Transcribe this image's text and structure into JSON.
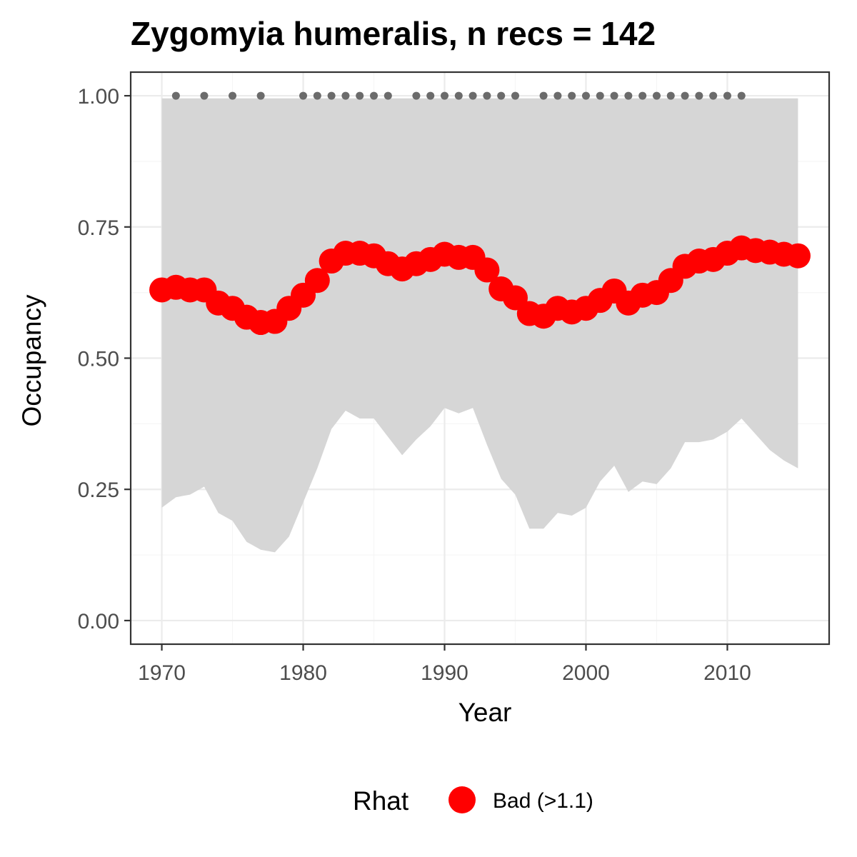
{
  "chart_data": {
    "type": "line",
    "title": "Zygomyia humeralis, n recs = 142",
    "xlabel": "Year",
    "ylabel": "Occupancy",
    "xlim": [
      1967.8,
      2017.2
    ],
    "ylim": [
      -0.045,
      1.045
    ],
    "x_ticks": [
      1970,
      1980,
      1990,
      2000,
      2010
    ],
    "x_tick_labels": [
      "1970",
      "1980",
      "1990",
      "2000",
      "2010"
    ],
    "y_ticks": [
      0,
      0.25,
      0.5,
      0.75,
      1.0
    ],
    "y_tick_labels": [
      "0.00",
      "0.25",
      "0.50",
      "0.75",
      "1.00"
    ],
    "grid": true,
    "colors": {
      "mean": "#ff0000",
      "ribbon": "#d6d6d6",
      "records": "#6b6b6b",
      "grid_major": "#ebebeb",
      "grid_minor": "#f5f5f5",
      "panel_border": "#333333"
    },
    "x": [
      1970,
      1971,
      1972,
      1973,
      1974,
      1975,
      1976,
      1977,
      1978,
      1979,
      1980,
      1981,
      1982,
      1983,
      1984,
      1985,
      1986,
      1987,
      1988,
      1989,
      1990,
      1991,
      1992,
      1993,
      1994,
      1995,
      1996,
      1997,
      1998,
      1999,
      2000,
      2001,
      2002,
      2003,
      2004,
      2005,
      2006,
      2007,
      2008,
      2009,
      2010,
      2011,
      2012,
      2013,
      2014,
      2015
    ],
    "series": [
      {
        "values": [
          0.63,
          0.635,
          0.63,
          0.63,
          0.605,
          0.595,
          0.578,
          0.568,
          0.57,
          0.595,
          0.62,
          0.648,
          0.685,
          0.7,
          0.7,
          0.695,
          0.68,
          0.67,
          0.68,
          0.688,
          0.698,
          0.692,
          0.692,
          0.668,
          0.632,
          0.615,
          0.585,
          0.58,
          0.595,
          0.588,
          0.595,
          0.61,
          0.628,
          0.605,
          0.62,
          0.625,
          0.648,
          0.675,
          0.685,
          0.688,
          0.7,
          0.71,
          0.705,
          0.702,
          0.698,
          0.695
        ]
      }
    ],
    "ribbon": {
      "lower": [
        0.215,
        0.235,
        0.24,
        0.255,
        0.205,
        0.19,
        0.15,
        0.135,
        0.13,
        0.16,
        0.225,
        0.29,
        0.365,
        0.4,
        0.385,
        0.385,
        0.35,
        0.315,
        0.345,
        0.37,
        0.405,
        0.395,
        0.405,
        0.335,
        0.27,
        0.24,
        0.175,
        0.175,
        0.205,
        0.2,
        0.215,
        0.265,
        0.295,
        0.245,
        0.265,
        0.26,
        0.29,
        0.34,
        0.34,
        0.345,
        0.36,
        0.385,
        0.355,
        0.325,
        0.305,
        0.29
      ],
      "upper": [
        0.995,
        0.995,
        0.995,
        0.995,
        0.995,
        0.995,
        0.995,
        0.995,
        0.995,
        0.995,
        0.995,
        0.995,
        0.995,
        0.995,
        0.995,
        0.995,
        0.995,
        0.995,
        0.995,
        0.995,
        0.995,
        0.995,
        0.995,
        0.995,
        0.995,
        0.995,
        0.995,
        0.995,
        0.995,
        0.995,
        0.995,
        0.995,
        0.995,
        0.995,
        0.995,
        0.995,
        0.995,
        0.995,
        0.995,
        0.995,
        0.995,
        0.995,
        0.995,
        0.995,
        0.995,
        0.995
      ]
    },
    "record_years": [
      1971,
      1973,
      1975,
      1977,
      1980,
      1981,
      1982,
      1983,
      1984,
      1985,
      1986,
      1988,
      1989,
      1990,
      1991,
      1992,
      1993,
      1994,
      1995,
      1997,
      1998,
      1999,
      2000,
      2001,
      2002,
      2003,
      2004,
      2005,
      2006,
      2007,
      2008,
      2009,
      2010,
      2011
    ],
    "record_value": 1.0,
    "legend": {
      "title": "Rhat",
      "entries": [
        {
          "label": "Bad (>1.1)",
          "color": "#ff0000"
        }
      ],
      "position": "bottom"
    }
  }
}
